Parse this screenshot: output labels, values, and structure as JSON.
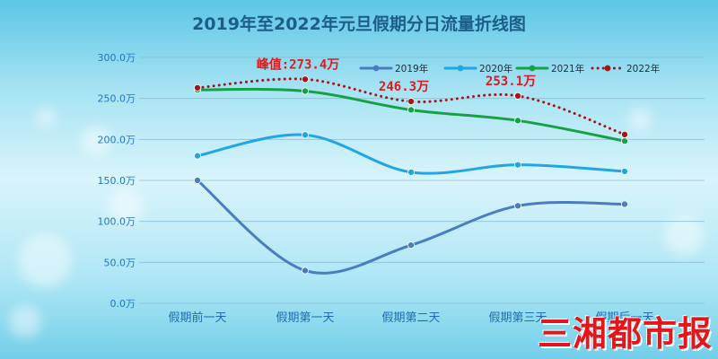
{
  "chart_data": {
    "type": "line",
    "title": "2019年至2022年元旦假期分日流量折线图",
    "categories": [
      "假期前一天",
      "假期第一天",
      "假期第二天",
      "假期第三天",
      "假期后一天"
    ],
    "y_ticks": [
      "0.0万",
      "50.0万",
      "100.0万",
      "150.0万",
      "200.0万",
      "250.0万",
      "300.0万"
    ],
    "ylim": [
      0,
      300
    ],
    "grid": true,
    "legend_position": "top-right",
    "series": [
      {
        "name": "2019年",
        "values": [
          150,
          40,
          71,
          119,
          121
        ],
        "color": "#4a7dbf",
        "style": "solid"
      },
      {
        "name": "2020年",
        "values": [
          180,
          205.5,
          160,
          169,
          161
        ],
        "color": "#21a6e4",
        "style": "solid"
      },
      {
        "name": "2021年",
        "values": [
          260.5,
          259,
          236,
          223,
          198
        ],
        "color": "#17a145",
        "style": "solid"
      },
      {
        "name": "2022年",
        "values": [
          263,
          273.4,
          246.3,
          253.1,
          206
        ],
        "color": "#a3171c",
        "style": "dotted"
      }
    ],
    "annotations": [
      {
        "text": "峰值:273.4万",
        "series": 3,
        "index": 1
      },
      {
        "text": "246.3万",
        "series": 3,
        "index": 2
      },
      {
        "text": "253.1万",
        "series": 3,
        "index": 3
      }
    ]
  },
  "watermark": {
    "text": "三湘都市报",
    "color": "#e3161b"
  }
}
